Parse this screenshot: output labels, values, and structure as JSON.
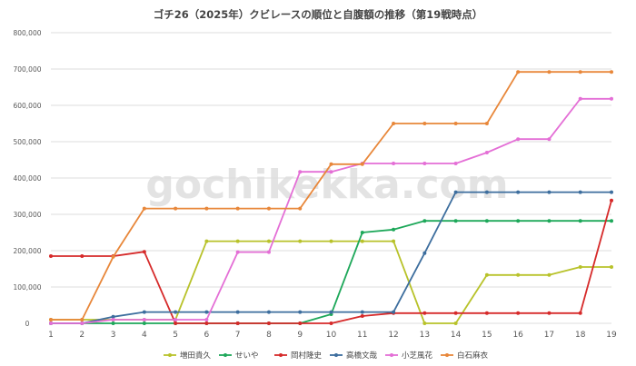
{
  "chart_data": {
    "type": "line",
    "title": "ゴチ26（2025年）クビレースの順位と自腹額の推移（第19戦時点）",
    "watermark": "gochikekka.com",
    "x": [
      1,
      2,
      3,
      4,
      5,
      6,
      7,
      8,
      9,
      10,
      11,
      12,
      13,
      14,
      15,
      16,
      17,
      18,
      19
    ],
    "yticks": [
      "0",
      "100,000",
      "200,000",
      "300,000",
      "400,000",
      "500,000",
      "600,000",
      "700,000",
      "800,000"
    ],
    "ylim": [
      0,
      800000
    ],
    "grid": true,
    "legend_position": "bottom",
    "series": [
      {
        "name": "増田貴久",
        "color": "#b8c22a",
        "values": [
          10000,
          10000,
          10000,
          10000,
          10000,
          226000,
          226000,
          226000,
          226000,
          226000,
          226000,
          226000,
          0,
          0,
          133000,
          133000,
          133000,
          155000,
          155000
        ]
      },
      {
        "name": "せいや",
        "color": "#1ea85a",
        "values": [
          0,
          0,
          0,
          0,
          0,
          0,
          0,
          0,
          0,
          25000,
          250000,
          258000,
          282000,
          282000,
          282000,
          282000,
          282000,
          282000,
          282000
        ]
      },
      {
        "name": "岡村隆史",
        "color": "#d62a2a",
        "values": [
          185000,
          185000,
          185000,
          197000,
          0,
          0,
          0,
          0,
          0,
          0,
          20000,
          28000,
          28000,
          28000,
          28000,
          28000,
          28000,
          28000,
          338000
        ]
      },
      {
        "name": "高橋文哉",
        "color": "#3d6e9e",
        "values": [
          0,
          0,
          18000,
          31000,
          31000,
          31000,
          31000,
          31000,
          31000,
          31000,
          31000,
          31000,
          193000,
          361000,
          361000,
          361000,
          361000,
          361000,
          361000
        ]
      },
      {
        "name": "小芝風花",
        "color": "#e46fd6",
        "values": [
          0,
          0,
          10000,
          10000,
          10000,
          10000,
          196000,
          196000,
          417000,
          417000,
          440000,
          440000,
          440000,
          440000,
          470000,
          507000,
          507000,
          618000,
          618000
        ]
      },
      {
        "name": "白石麻衣",
        "color": "#e8873a",
        "values": [
          10000,
          10000,
          183000,
          316000,
          316000,
          316000,
          316000,
          316000,
          316000,
          438000,
          438000,
          550000,
          550000,
          550000,
          550000,
          692000,
          692000,
          692000,
          692000
        ]
      }
    ]
  }
}
